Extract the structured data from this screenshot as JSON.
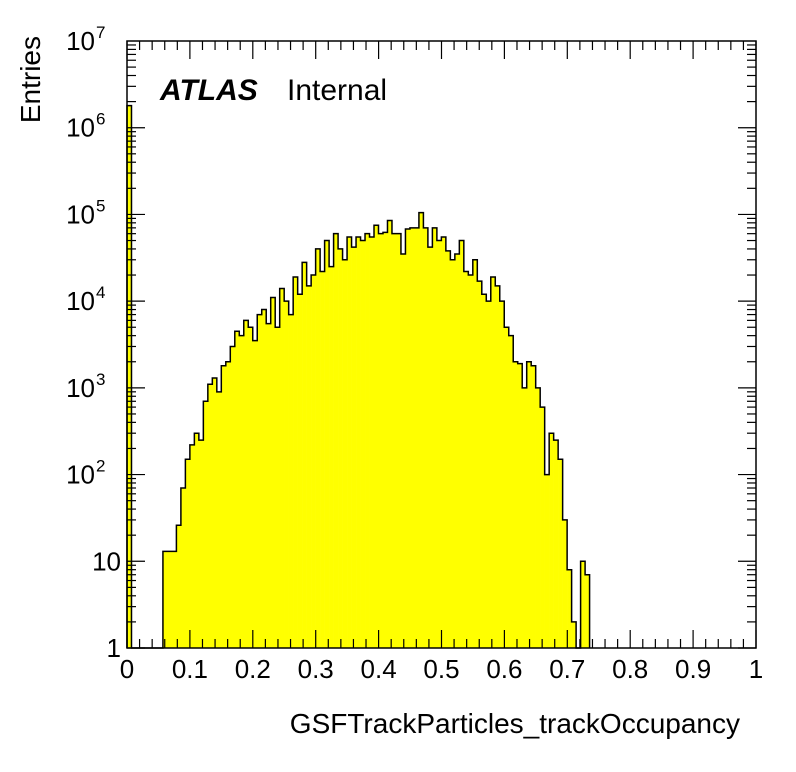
{
  "chart_data": {
    "type": "bar",
    "style": "histogram-step-filled",
    "xlabel": "GSFTrackParticles_trackOccupancy",
    "ylabel": "Entries",
    "xlim": [
      0,
      1
    ],
    "ylim": [
      1,
      10000000
    ],
    "y_scale": "log",
    "fill_color": "#ffff00",
    "line_color": "#000000",
    "grid": false,
    "x_ticks": [
      "0",
      "0.1",
      "0.2",
      "0.3",
      "0.4",
      "0.5",
      "0.6",
      "0.7",
      "0.8",
      "0.9",
      "1"
    ],
    "y_ticks": [
      {
        "value": 1,
        "label": "1"
      },
      {
        "value": 10,
        "label": "10"
      },
      {
        "value": 100,
        "label": "10",
        "exp": "2"
      },
      {
        "value": 1000,
        "label": "10",
        "exp": "3"
      },
      {
        "value": 10000,
        "label": "10",
        "exp": "4"
      },
      {
        "value": 100000,
        "label": "10",
        "exp": "5"
      },
      {
        "value": 1000000,
        "label": "10",
        "exp": "6"
      },
      {
        "value": 10000000,
        "label": "10",
        "exp": "7"
      }
    ],
    "bin_width": 0.00714,
    "bin_edges_start": 0,
    "values": [
      1800000,
      0,
      0,
      0,
      0,
      1,
      0,
      0,
      13,
      13,
      13,
      26,
      70,
      150,
      220,
      300,
      250,
      700,
      1100,
      1300,
      900,
      1800,
      2000,
      3000,
      4500,
      4000,
      6000,
      5000,
      3500,
      7000,
      8000,
      5500,
      11000,
      5000,
      14000,
      10000,
      7000,
      19000,
      12000,
      28000,
      15000,
      20000,
      40000,
      22000,
      50000,
      25000,
      60000,
      40000,
      30000,
      55000,
      42000,
      55000,
      50000,
      60000,
      55000,
      75000,
      60000,
      62000,
      85000,
      60000,
      60000,
      35000,
      68000,
      70000,
      70000,
      105000,
      70000,
      42000,
      70000,
      50000,
      55000,
      38000,
      30000,
      35000,
      50000,
      22000,
      20000,
      30000,
      17000,
      12000,
      10000,
      19000,
      15000,
      10000,
      5000,
      4000,
      2000,
      1900,
      1000,
      2000,
      1800,
      1000,
      600,
      100,
      300,
      250,
      150,
      30,
      8,
      2
    ],
    "tail_values": [
      1,
      10,
      7
    ],
    "atlas_label": "ATLAS",
    "atlas_sublabel": "Internal"
  }
}
